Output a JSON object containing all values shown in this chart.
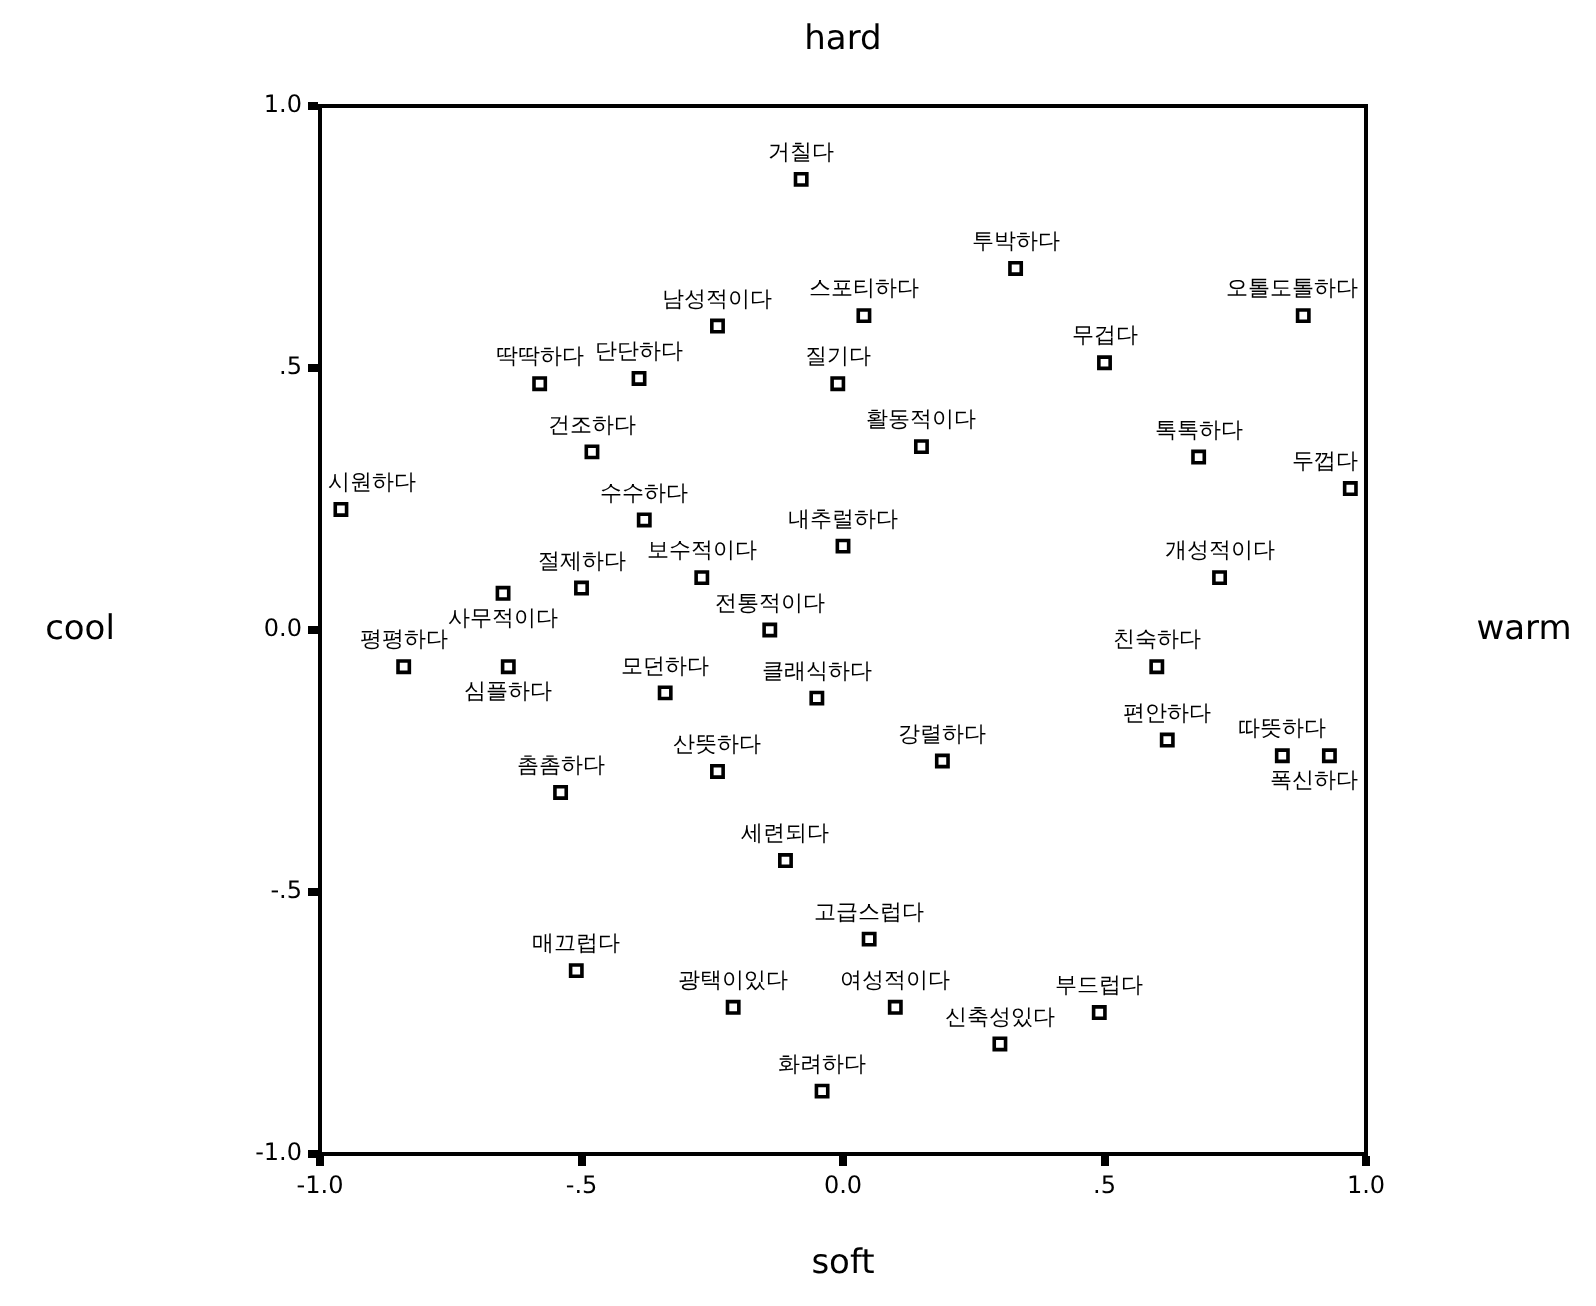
{
  "chart_data": {
    "type": "scatter",
    "title": "hard",
    "xlabel": "soft",
    "ylabel": "cool",
    "y2label": "warm",
    "marker": "square",
    "grid": false,
    "xlim": [
      -1,
      1
    ],
    "ylim": [
      -1,
      1
    ],
    "xticks": [
      {
        "value": -1,
        "label": "-1.0"
      },
      {
        "value": -0.5,
        "label": "-.5"
      },
      {
        "value": 0,
        "label": "0.0"
      },
      {
        "value": 0.5,
        "label": ".5"
      },
      {
        "value": 1,
        "label": "1.0"
      }
    ],
    "yticks": [
      {
        "value": -1,
        "label": "-1.0"
      },
      {
        "value": -0.5,
        "label": "-.5"
      },
      {
        "value": 0,
        "label": "0.0"
      },
      {
        "value": 0.5,
        "label": ".5"
      },
      {
        "value": 1,
        "label": "1.0"
      }
    ],
    "series": [
      {
        "color": "#000000",
        "x": [
          -0.08,
          0.33,
          0.04,
          0.88,
          -0.24,
          -0.58,
          -0.39,
          -0.01,
          0.5,
          -0.48,
          0.15,
          0.68,
          0.97,
          -0.96,
          -0.38,
          0.0,
          -0.5,
          -0.65,
          -0.27,
          0.72,
          -0.14,
          0.6,
          -0.84,
          -0.64,
          -0.34,
          -0.05,
          0.62,
          0.84,
          0.93,
          0.19,
          -0.24,
          -0.54,
          -0.11,
          0.05,
          -0.51,
          -0.21,
          0.1,
          0.49,
          0.3,
          -0.04
        ],
        "values": [
          0.86,
          0.69,
          0.6,
          0.6,
          0.58,
          0.47,
          0.48,
          0.47,
          0.51,
          0.34,
          0.35,
          0.33,
          0.27,
          0.23,
          0.21,
          0.16,
          0.08,
          0.07,
          0.1,
          0.1,
          0.0,
          -0.07,
          -0.07,
          -0.07,
          -0.12,
          -0.13,
          -0.21,
          -0.24,
          -0.24,
          -0.25,
          -0.27,
          -0.31,
          -0.44,
          -0.59,
          -0.65,
          -0.72,
          -0.72,
          -0.73,
          -0.79,
          -0.88
        ]
      }
    ],
    "annotations": [
      {
        "text": "거칠다",
        "x": -0.08,
        "y": 0.86
      },
      {
        "text": "투박하다",
        "x": 0.33,
        "y": 0.69
      },
      {
        "text": "스포티하다",
        "x": 0.04,
        "y": 0.6
      },
      {
        "text": "오톨도톨하다",
        "x": 0.88,
        "y": 0.6
      },
      {
        "text": "남성적이다",
        "x": -0.24,
        "y": 0.58
      },
      {
        "text": "딱딱하다",
        "x": -0.58,
        "y": 0.47
      },
      {
        "text": "단단하다",
        "x": -0.39,
        "y": 0.48
      },
      {
        "text": "질기다",
        "x": -0.01,
        "y": 0.47
      },
      {
        "text": "무겁다",
        "x": 0.5,
        "y": 0.51
      },
      {
        "text": "건조하다",
        "x": -0.48,
        "y": 0.34
      },
      {
        "text": "활동적이다",
        "x": 0.15,
        "y": 0.35
      },
      {
        "text": "톡톡하다",
        "x": 0.68,
        "y": 0.33
      },
      {
        "text": "두껍다",
        "x": 0.97,
        "y": 0.27
      },
      {
        "text": "시원하다",
        "x": -0.96,
        "y": 0.23
      },
      {
        "text": "수수하다",
        "x": -0.38,
        "y": 0.21
      },
      {
        "text": "내추럴하다",
        "x": 0.0,
        "y": 0.16
      },
      {
        "text": "절제하다",
        "x": -0.5,
        "y": 0.08
      },
      {
        "text": "사무적이다",
        "x": -0.65,
        "y": 0.07
      },
      {
        "text": "보수적이다",
        "x": -0.27,
        "y": 0.1
      },
      {
        "text": "개성적이다",
        "x": 0.72,
        "y": 0.1
      },
      {
        "text": "전통적이다",
        "x": -0.14,
        "y": 0.0
      },
      {
        "text": "친숙하다",
        "x": 0.6,
        "y": -0.07
      },
      {
        "text": "평평하다",
        "x": -0.84,
        "y": -0.07
      },
      {
        "text": "심플하다",
        "x": -0.64,
        "y": -0.07
      },
      {
        "text": "모던하다",
        "x": -0.34,
        "y": -0.12
      },
      {
        "text": "클래식하다",
        "x": -0.05,
        "y": -0.13
      },
      {
        "text": "편안하다",
        "x": 0.62,
        "y": -0.21
      },
      {
        "text": "따뜻하다",
        "x": 0.84,
        "y": -0.24
      },
      {
        "text": "폭신하다",
        "x": 0.93,
        "y": -0.24
      },
      {
        "text": "강렬하다",
        "x": 0.19,
        "y": -0.25
      },
      {
        "text": "산뜻하다",
        "x": -0.24,
        "y": -0.27
      },
      {
        "text": "촘촘하다",
        "x": -0.54,
        "y": -0.31
      },
      {
        "text": "세련되다",
        "x": -0.11,
        "y": -0.44
      },
      {
        "text": "고급스럽다",
        "x": 0.05,
        "y": -0.59
      },
      {
        "text": "매끄럽다",
        "x": -0.51,
        "y": -0.65
      },
      {
        "text": "광택이있다",
        "x": -0.21,
        "y": -0.72
      },
      {
        "text": "여성적이다",
        "x": 0.1,
        "y": -0.72
      },
      {
        "text": "부드럽다",
        "x": 0.49,
        "y": -0.73
      },
      {
        "text": "신축성있다",
        "x": 0.3,
        "y": -0.79
      },
      {
        "text": "화려하다",
        "x": -0.04,
        "y": -0.88
      }
    ]
  }
}
